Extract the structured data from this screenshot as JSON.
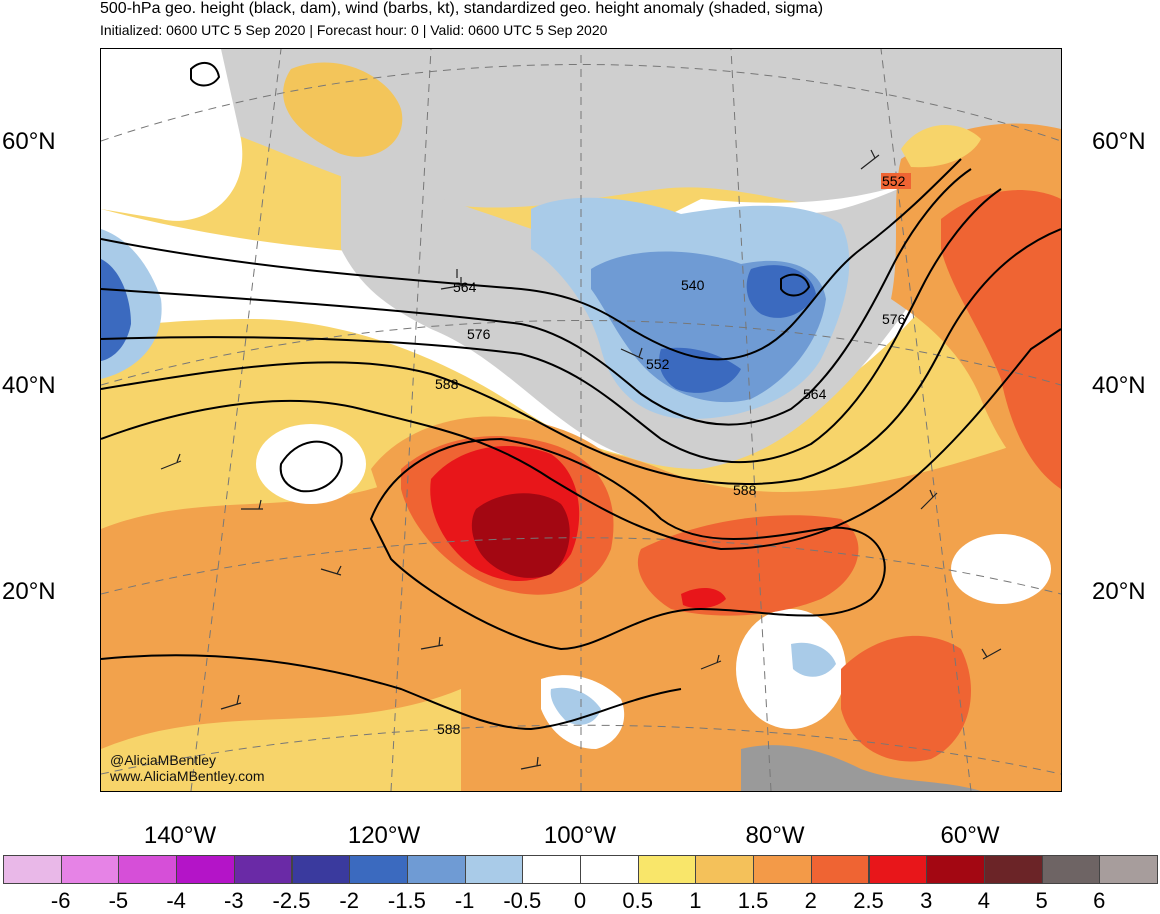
{
  "header": {
    "title": "500-hPa geo. height (black, dam), wind (barbs, kt), standardized geo. height anomaly (shaded, sigma)",
    "subtitle": "Initialized: 0600 UTC 5 Sep 2020 | Forecast hour: 0 | Valid: 0600 UTC 5 Sep 2020"
  },
  "map": {
    "lat_labels": [
      "60°N",
      "40°N",
      "20°N"
    ],
    "lon_labels": [
      "140°W",
      "120°W",
      "100°W",
      "80°W",
      "60°W"
    ],
    "contour_labels": [
      "552",
      "564",
      "540",
      "576",
      "552",
      "588",
      "564",
      "588",
      "576",
      "588"
    ],
    "watermark": [
      "@AliciaMBentley",
      "www.AliciaMBentley.com"
    ]
  },
  "colorbar": {
    "ticks": [
      "-6",
      "-5",
      "-4",
      "-3",
      "-2.5",
      "-2",
      "-1.5",
      "-1",
      "-0.5",
      "0",
      "0.5",
      "1",
      "1.5",
      "2",
      "2.5",
      "3",
      "4",
      "5",
      "6"
    ],
    "colors": [
      "#e9b8e8",
      "#e683e6",
      "#d64fd8",
      "#b414c8",
      "#6a2aa6",
      "#3a3a9e",
      "#3b6abf",
      "#6f9bd4",
      "#a9cbe8",
      "#ffffff",
      "#ffffff",
      "#f9e66a",
      "#f4c15a",
      "#f39a48",
      "#ef6433",
      "#e8161a",
      "#a30712",
      "#6b2427",
      "#6e6464",
      "#a79d9c"
    ]
  }
}
